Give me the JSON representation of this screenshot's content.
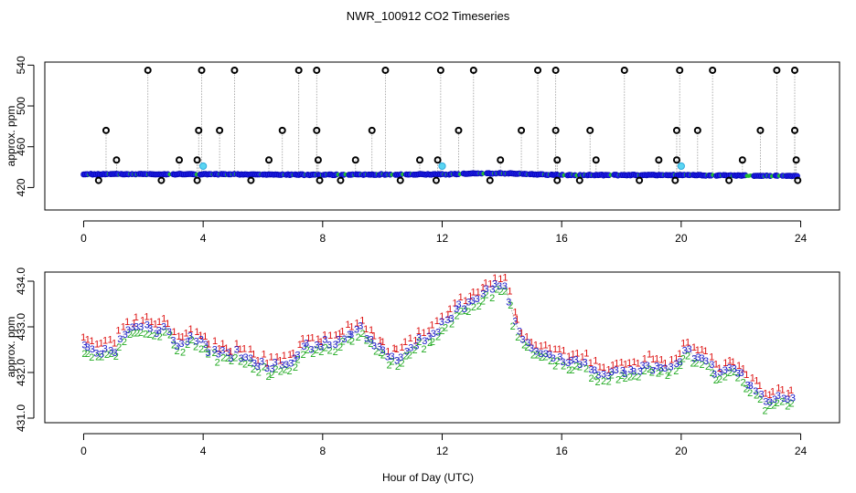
{
  "title": "NWR_100912  CO2 Timeseries",
  "xlabel": "Hour of Day (UTC)",
  "chart_data": [
    {
      "type": "scatter",
      "ylabel": "approx. ppm",
      "xlim": [
        -1.3,
        25.3
      ],
      "ylim": [
        398,
        543
      ],
      "xticks": [
        0,
        4,
        8,
        12,
        16,
        20,
        24
      ],
      "yticks": [
        420,
        460,
        500,
        540
      ],
      "yticklabels": [
        "420",
        "460",
        "500",
        "540"
      ],
      "baseline": [
        [
          0,
          433.0
        ],
        [
          2,
          433.2
        ],
        [
          4,
          433.0
        ],
        [
          8,
          432.5
        ],
        [
          12,
          433.0
        ],
        [
          13.5,
          434.0
        ],
        [
          14,
          434.0
        ],
        [
          16,
          432.2
        ],
        [
          20,
          432.3
        ],
        [
          24,
          431.2
        ]
      ],
      "series": [
        {
          "key": "flagged_high",
          "x": [
            2.15,
            3.95,
            5.05,
            7.2,
            7.8,
            10.1,
            11.95,
            13.05,
            15.2,
            15.8,
            18.1,
            19.95,
            21.05,
            23.2,
            23.8
          ],
          "values": [
            535,
            535,
            535,
            535,
            535,
            535,
            535,
            535,
            535,
            535,
            535,
            535,
            535,
            535,
            535
          ]
        },
        {
          "key": "flagged_mid",
          "x": [
            0.75,
            3.85,
            4.55,
            6.65,
            7.8,
            9.65,
            12.55,
            14.65,
            15.8,
            16.95,
            19.85,
            20.55,
            22.65,
            23.8
          ],
          "values": [
            476,
            476,
            476,
            476,
            476,
            476,
            476,
            476,
            476,
            476,
            476,
            476,
            476,
            476
          ]
        },
        {
          "key": "flagged_low",
          "x": [
            1.1,
            3.2,
            3.8,
            6.2,
            7.85,
            9.1,
            11.25,
            11.85,
            13.95,
            15.85,
            17.15,
            19.25,
            19.85,
            22.05,
            23.85
          ],
          "values": [
            447,
            447,
            447,
            447,
            447,
            447,
            447,
            447,
            447,
            447,
            447,
            447,
            447,
            447,
            447
          ]
        },
        {
          "key": "flagged_below",
          "x": [
            0.5,
            2.6,
            3.8,
            5.6,
            7.9,
            8.6,
            10.6,
            11.8,
            13.6,
            15.85,
            16.6,
            18.6,
            19.8,
            21.6,
            23.9
          ],
          "values": [
            427,
            427,
            427,
            427,
            427,
            427,
            427,
            427,
            427,
            427,
            427,
            427,
            427,
            427,
            427
          ]
        },
        {
          "key": "cyan",
          "x": [
            4.0,
            12.0,
            20.0
          ],
          "values": [
            441,
            441,
            441
          ]
        }
      ]
    },
    {
      "type": "scatter",
      "ylabel": "approx. ppm",
      "xlim": [
        -1.3,
        25.3
      ],
      "ylim": [
        430.9,
        434.2
      ],
      "xticks": [
        0,
        4,
        8,
        12,
        16,
        20,
        24
      ],
      "yticks": [
        431,
        432,
        433,
        434
      ],
      "yticklabels": [
        "431.0",
        "432.0",
        "433.0",
        "434.0"
      ],
      "series_labels": [
        "1",
        "2",
        "3"
      ],
      "series_colors": [
        "#dd1111",
        "#22aa22",
        "#1a1acc"
      ],
      "profile": [
        [
          0,
          432.5
        ],
        [
          0.4,
          432.4
        ],
        [
          1,
          432.5
        ],
        [
          1.6,
          433.0
        ],
        [
          2.2,
          432.9
        ],
        [
          2.7,
          433.0
        ],
        [
          3.2,
          432.6
        ],
        [
          3.7,
          432.8
        ],
        [
          4.2,
          432.5
        ],
        [
          4.7,
          432.4
        ],
        [
          5.3,
          432.4
        ],
        [
          5.8,
          432.2
        ],
        [
          6.3,
          432.1
        ],
        [
          6.8,
          432.2
        ],
        [
          7.3,
          432.5
        ],
        [
          7.8,
          432.6
        ],
        [
          8.3,
          432.6
        ],
        [
          8.8,
          432.8
        ],
        [
          9.3,
          432.9
        ],
        [
          9.8,
          432.6
        ],
        [
          10.3,
          432.3
        ],
        [
          10.8,
          432.5
        ],
        [
          11.3,
          432.7
        ],
        [
          11.8,
          432.9
        ],
        [
          12.3,
          433.3
        ],
        [
          12.8,
          433.5
        ],
        [
          13.3,
          433.6
        ],
        [
          13.8,
          434.0
        ],
        [
          14.1,
          433.9
        ],
        [
          14.3,
          433.4
        ],
        [
          14.8,
          432.6
        ],
        [
          15.3,
          432.4
        ],
        [
          15.8,
          432.3
        ],
        [
          16.3,
          432.2
        ],
        [
          16.8,
          432.2
        ],
        [
          17.3,
          431.9
        ],
        [
          17.8,
          432.0
        ],
        [
          18.3,
          432.0
        ],
        [
          18.8,
          432.2
        ],
        [
          19.3,
          432.1
        ],
        [
          19.8,
          432.2
        ],
        [
          20.3,
          432.5
        ],
        [
          20.8,
          432.2
        ],
        [
          21.3,
          432.0
        ],
        [
          21.8,
          432.1
        ],
        [
          22.3,
          431.7
        ],
        [
          22.8,
          431.4
        ],
        [
          23.3,
          431.5
        ],
        [
          23.7,
          431.4
        ]
      ]
    }
  ]
}
